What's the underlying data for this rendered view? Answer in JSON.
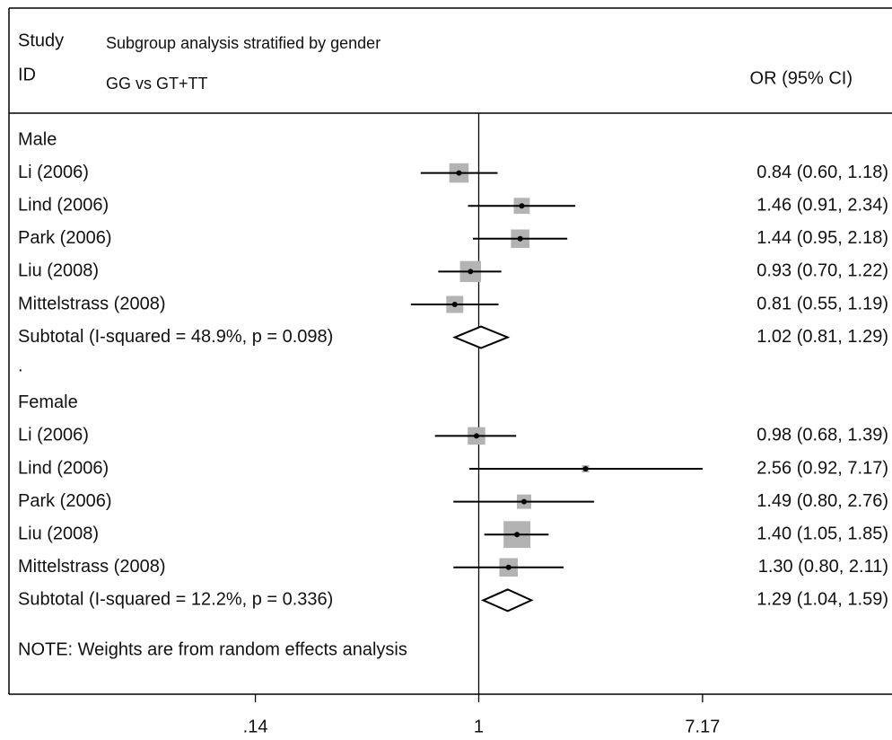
{
  "chart_data": {
    "type": "forest",
    "header": {
      "study": "Study",
      "id": "ID",
      "title": "Subgroup analysis stratified by gender",
      "subtitle": "GG vs GT+TT",
      "effect": "OR (95% CI)"
    },
    "groups": [
      {
        "name": "Male",
        "studies": [
          {
            "label": "Li (2006)",
            "value": 0.84,
            "lower": 0.6,
            "upper": 1.18,
            "weight": 22,
            "value_label": "0.84 (0.60, 1.18)"
          },
          {
            "label": "Lind (2006)",
            "value": 1.46,
            "lower": 0.91,
            "upper": 2.34,
            "weight": 15,
            "value_label": "1.46 (0.91, 2.34)"
          },
          {
            "label": "Park (2006)",
            "value": 1.44,
            "lower": 0.95,
            "upper": 2.18,
            "weight": 20,
            "value_label": "1.44 (0.95, 2.18)"
          },
          {
            "label": "Liu (2008)",
            "value": 0.93,
            "lower": 0.7,
            "upper": 1.22,
            "weight": 26,
            "value_label": "0.93 (0.70, 1.22)"
          },
          {
            "label": "Mittelstrass (2008)",
            "value": 0.81,
            "lower": 0.55,
            "upper": 1.19,
            "weight": 17,
            "value_label": "0.81 (0.55, 1.19)"
          }
        ],
        "subtotal": {
          "label": "Subtotal  (I-squared = 48.9%, p = 0.098)",
          "value": 1.02,
          "lower": 0.81,
          "upper": 1.29,
          "value_label": "1.02 (0.81, 1.29)"
        }
      },
      {
        "name": "Female",
        "studies": [
          {
            "label": "Li (2006)",
            "value": 0.98,
            "lower": 0.68,
            "upper": 1.39,
            "weight": 18,
            "value_label": "0.98 (0.68, 1.39)"
          },
          {
            "label": "Lind (2006)",
            "value": 2.56,
            "lower": 0.92,
            "upper": 7.17,
            "weight": 3,
            "value_label": "2.56 (0.92, 7.17)"
          },
          {
            "label": "Park (2006)",
            "value": 1.49,
            "lower": 0.8,
            "upper": 2.76,
            "weight": 12,
            "value_label": "1.49 (0.80, 2.76)"
          },
          {
            "label": "Liu (2008)",
            "value": 1.4,
            "lower": 1.05,
            "upper": 1.85,
            "weight": 42,
            "value_label": "1.40 (1.05, 1.85)"
          },
          {
            "label": "Mittelstrass (2008)",
            "value": 1.3,
            "lower": 0.8,
            "upper": 2.11,
            "weight": 20,
            "value_label": "1.30 (0.80, 2.11)"
          }
        ],
        "subtotal": {
          "label": "Subtotal  (I-squared = 12.2%, p = 0.336)",
          "value": 1.29,
          "lower": 1.04,
          "upper": 1.59,
          "value_label": "1.29 (1.04, 1.59)"
        }
      }
    ],
    "separator": ".",
    "note": "NOTE: Weights are from random effects analysis",
    "null_value": 1,
    "log_scale": true,
    "xlim": [
      0.016,
      38
    ],
    "xticks": [
      {
        "value": 0.14,
        "label": ".14"
      },
      1,
      7.17
    ],
    "box_color": "#b3b3b3",
    "line_color": "#000000"
  }
}
